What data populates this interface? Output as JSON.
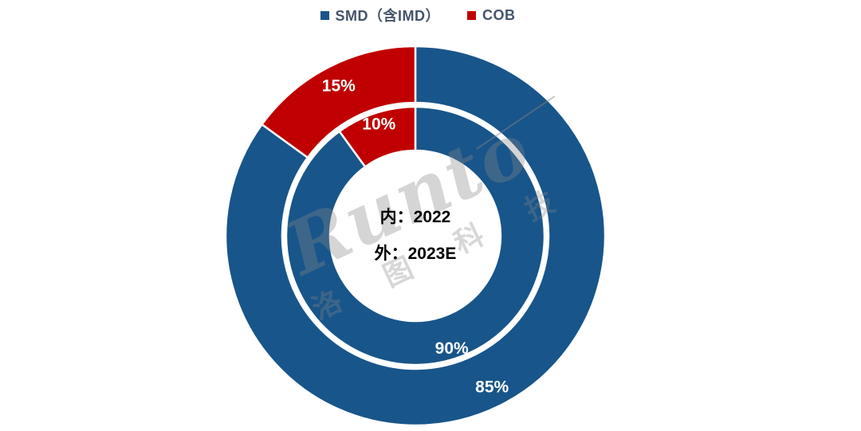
{
  "legend": {
    "items": [
      {
        "label": "SMD（含IMD）",
        "color": "#18558A"
      },
      {
        "label": "COB",
        "color": "#C00000"
      }
    ]
  },
  "center_label": {
    "line1": "内：2022",
    "line2": "外：2023E"
  },
  "watermark": {
    "brand": "Runto",
    "cjk": "洛 图 科 技"
  },
  "chart_data": {
    "type": "pie",
    "subtype": "nested-donut",
    "title": "",
    "categories": [
      "SMD（含IMD）",
      "COB"
    ],
    "colors": [
      "#18558A",
      "#C00000"
    ],
    "series": [
      {
        "name": "2022",
        "ring": "inner",
        "values": [
          90,
          10
        ],
        "labels": [
          "90%",
          "10%"
        ]
      },
      {
        "name": "2023E",
        "ring": "outer",
        "values": [
          85,
          15
        ],
        "labels": [
          "85%",
          "15%"
        ]
      }
    ],
    "start_angle_deg": 0,
    "direction": "clockwise",
    "legend_position": "top",
    "data_label_color": "#FFFFFF",
    "center_note": {
      "inner": "2022",
      "outer": "2023E"
    },
    "geometry": {
      "cx": 521,
      "cy": 296,
      "inner_ring": [
        107,
        162
      ],
      "outer_ring": [
        167,
        238
      ],
      "inner_label_r": 148,
      "outer_label_r": 212
    }
  }
}
